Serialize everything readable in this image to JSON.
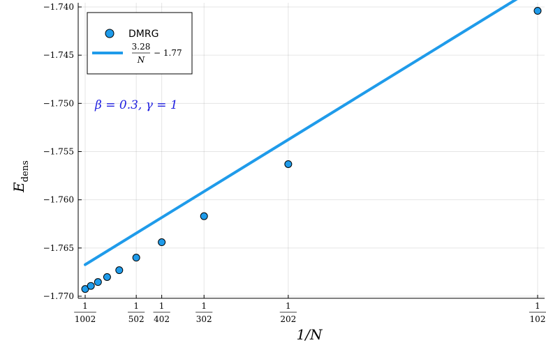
{
  "chart_data": {
    "type": "scatter",
    "xlabel": "1/N",
    "ylabel_main": "E",
    "ylabel_sub": "dens",
    "ylim": [
      -1.77,
      -1.74
    ],
    "yticks": [
      -1.77,
      -1.765,
      -1.76,
      -1.755,
      -1.75,
      -1.745,
      -1.74
    ],
    "ytick_labels": [
      "−1.770",
      "−1.765",
      "−1.760",
      "−1.755",
      "−1.750",
      "−1.745",
      "−1.740"
    ],
    "xticks": [
      {
        "N": 1002,
        "num": "1",
        "den": "1002"
      },
      {
        "N": 502,
        "num": "1",
        "den": "502"
      },
      {
        "N": 402,
        "num": "1",
        "den": "402"
      },
      {
        "N": 302,
        "num": "1",
        "den": "302"
      },
      {
        "N": 202,
        "num": "1",
        "den": "202"
      },
      {
        "N": 102,
        "num": "1",
        "den": "102"
      }
    ],
    "series": [
      {
        "name": "DMRG",
        "kind": "scatter",
        "color": "#1f9bea",
        "points": [
          {
            "N": 1002,
            "y": -1.76925
          },
          {
            "N": 902,
            "y": -1.76893
          },
          {
            "N": 802,
            "y": -1.76853
          },
          {
            "N": 702,
            "y": -1.76801
          },
          {
            "N": 602,
            "y": -1.7673
          },
          {
            "N": 502,
            "y": -1.766
          },
          {
            "N": 402,
            "y": -1.7644
          },
          {
            "N": 302,
            "y": -1.7617
          },
          {
            "N": 202,
            "y": -1.7563
          },
          {
            "N": 102,
            "y": -1.7404
          }
        ]
      },
      {
        "kind": "line",
        "color": "#1f9bea",
        "slope": 3.28,
        "intercept": -1.77,
        "x_range_N": [
          1002,
          102
        ]
      }
    ],
    "legend": {
      "position": "top-left",
      "entries": [
        {
          "label": "DMRG"
        },
        {
          "label_num": "3.28",
          "label_den": "N",
          "label_tail": "− 1.77"
        }
      ]
    },
    "annotation": "β = 0.3, γ = 1",
    "grid": true
  }
}
